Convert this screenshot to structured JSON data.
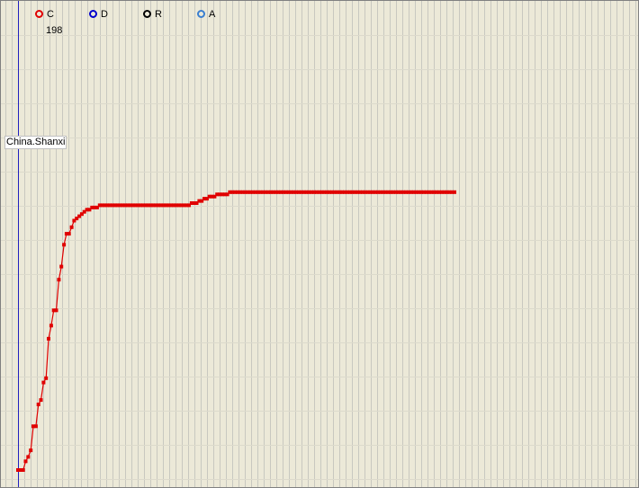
{
  "legend": [
    {
      "label": "C",
      "color": "#e00000"
    },
    {
      "label": "D",
      "color": "#0000cc"
    },
    {
      "label": "R",
      "color": "#000000"
    },
    {
      "label": "A",
      "color": "#3a7fd0"
    }
  ],
  "count": "198",
  "region": "China.Shanxi",
  "colors": {
    "background": "#ece9d8",
    "grid": "#c8c8c0",
    "axis": "#2020c0",
    "series": "#e00000"
  },
  "chart_data": {
    "type": "line",
    "title": "",
    "xlabel": "",
    "ylabel": "",
    "grid": true,
    "legend_position": "top-left",
    "xlim": [
      0,
      171
    ],
    "ylim": [
      0,
      198
    ],
    "series": [
      {
        "name": "C",
        "x": [
          0,
          1,
          2,
          3,
          4,
          5,
          6,
          7,
          8,
          9,
          10,
          11,
          12,
          13,
          14,
          15,
          16,
          17,
          18,
          19,
          20,
          21,
          22,
          23,
          24,
          25,
          26,
          27,
          28,
          29,
          30,
          31,
          32,
          33,
          34,
          35,
          36,
          37,
          38,
          39,
          40,
          41,
          42,
          43,
          44,
          45,
          46,
          47,
          48,
          49,
          50,
          51,
          52,
          53,
          54,
          55,
          56,
          57,
          58,
          59,
          60,
          61,
          62,
          63,
          64,
          65,
          66,
          67,
          68,
          69,
          70,
          71,
          72,
          73,
          74,
          75,
          76,
          77,
          78,
          79,
          80,
          81,
          82,
          83,
          84,
          85,
          86,
          87,
          88,
          89,
          90,
          91,
          92,
          93,
          94,
          95,
          96,
          97,
          98,
          99,
          100,
          101,
          102,
          103,
          104,
          105,
          106,
          107,
          108,
          109,
          110,
          111,
          112,
          113,
          114,
          115,
          116,
          117,
          118,
          119,
          120,
          121,
          122,
          123,
          124,
          125,
          126,
          127,
          128,
          129,
          130,
          131,
          132,
          133,
          134,
          135,
          136,
          137,
          138,
          139,
          140,
          141,
          142,
          143,
          144,
          145,
          146,
          147,
          148,
          149,
          150,
          151,
          152,
          153,
          154,
          155,
          156,
          157,
          158,
          159,
          160,
          161,
          162,
          163,
          164,
          165,
          166,
          167,
          168,
          169,
          170,
          171
        ],
        "values": [
          0,
          0,
          0,
          4,
          6,
          9,
          20,
          20,
          30,
          32,
          40,
          42,
          60,
          66,
          73,
          73,
          87,
          93,
          103,
          108,
          108,
          111,
          114,
          115,
          116,
          117,
          118,
          119,
          119,
          120,
          120,
          120,
          121,
          121,
          121,
          121,
          121,
          121,
          121,
          121,
          121,
          121,
          121,
          121,
          121,
          121,
          121,
          121,
          121,
          121,
          121,
          121,
          121,
          121,
          121,
          121,
          121,
          121,
          121,
          121,
          121,
          121,
          121,
          121,
          121,
          121,
          121,
          121,
          122,
          122,
          122,
          123,
          123,
          124,
          124,
          125,
          125,
          125,
          126,
          126,
          126,
          126,
          126,
          127,
          127,
          127,
          127,
          127,
          127,
          127,
          127,
          127,
          127,
          127,
          127,
          127,
          127,
          127,
          127,
          127,
          127,
          127,
          127,
          127,
          127,
          127,
          127,
          127,
          127,
          127,
          127,
          127,
          127,
          127,
          127,
          127,
          127,
          127,
          127,
          127,
          127,
          127,
          127,
          127,
          127,
          127,
          127,
          127,
          127,
          127,
          127,
          127,
          127,
          127,
          127,
          127,
          127,
          127,
          127,
          127,
          127,
          127,
          127,
          127,
          127,
          127,
          127,
          127,
          127,
          127,
          127,
          127,
          127,
          127,
          127,
          127,
          127,
          127,
          127,
          127,
          127,
          127,
          127,
          127,
          127,
          127,
          127,
          127,
          127,
          127,
          127,
          127
        ]
      }
    ]
  }
}
